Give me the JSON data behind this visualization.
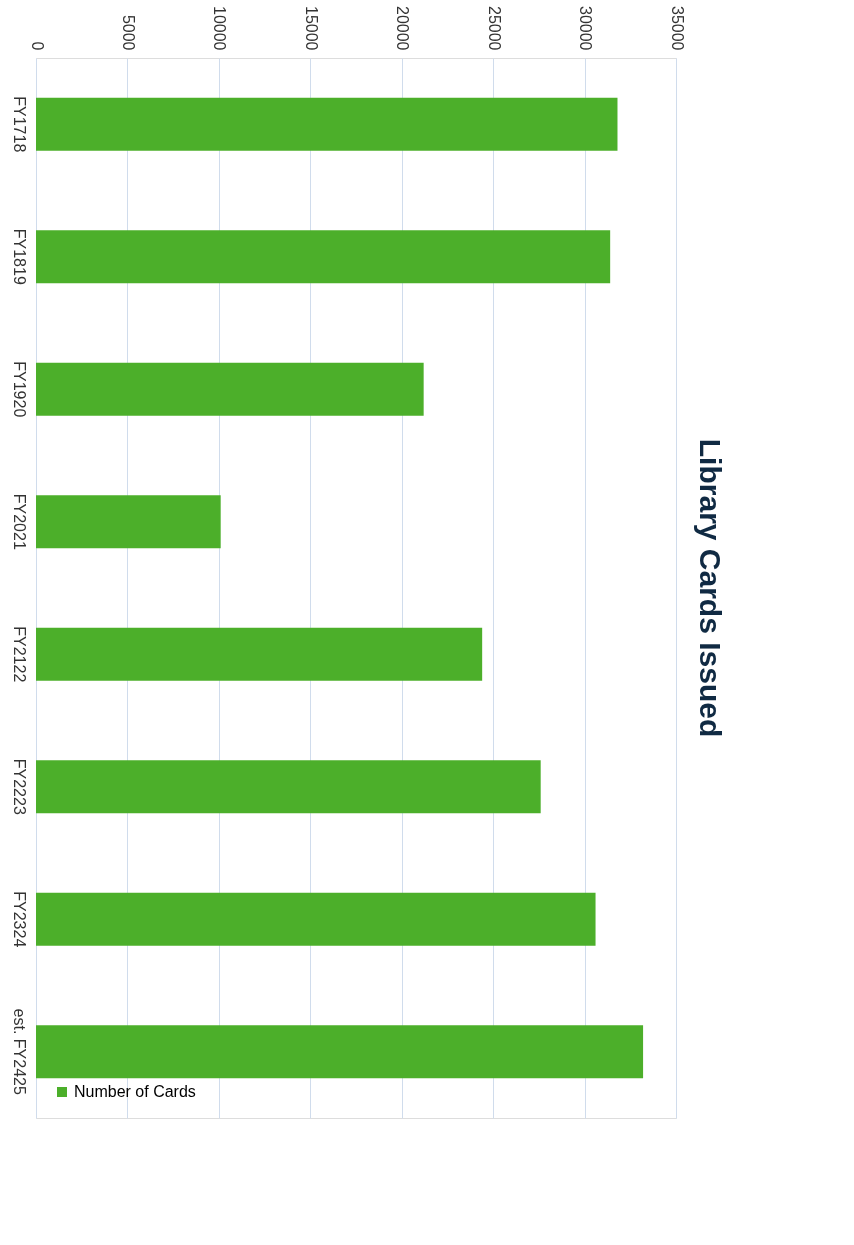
{
  "chart_data": {
    "type": "bar",
    "orientation": "horizontal",
    "title": "Library Cards Issued",
    "categories": [
      "FY1718",
      "FY1819",
      "FY1920",
      "FY2021",
      "FY2122",
      "FY2223",
      "FY2324",
      "est. FY2425"
    ],
    "series": [
      {
        "name": "Number of Cards",
        "color": "#4caf2a",
        "values": [
          31800,
          31400,
          21200,
          10100,
          24400,
          27600,
          30600,
          33200
        ]
      }
    ],
    "xlim": [
      0,
      35000
    ],
    "xticks": [
      0,
      5000,
      10000,
      15000,
      20000,
      25000,
      30000,
      35000
    ],
    "grid": "x",
    "legend": "bottom left"
  }
}
